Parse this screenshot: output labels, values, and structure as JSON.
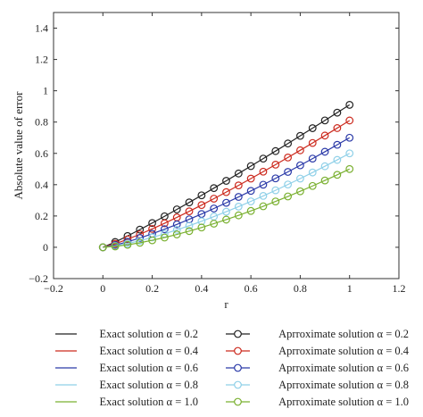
{
  "chart_data": {
    "type": "line",
    "xlabel": "r",
    "ylabel": "Absolute value of error",
    "xlim": [
      -0.2,
      1.2
    ],
    "ylim": [
      -0.2,
      1.5
    ],
    "xticks": [
      "−0.2",
      "0",
      "0.2",
      "0.4",
      "0.6",
      "0.8",
      "1",
      "1.2"
    ],
    "yticks": [
      "−0.2",
      "0",
      "0.2",
      "0.4",
      "0.6",
      "0.8",
      "1",
      "1.2",
      "1.4"
    ],
    "xtick_values": [
      -0.2,
      0,
      0.2,
      0.4,
      0.6,
      0.8,
      1.0,
      1.2
    ],
    "ytick_values": [
      -0.2,
      0,
      0.2,
      0.4,
      0.6,
      0.8,
      1.0,
      1.2,
      1.4
    ],
    "grid": false,
    "legend_position": "bottom",
    "x": [
      0,
      0.05,
      0.1,
      0.15,
      0.2,
      0.25,
      0.3,
      0.35,
      0.4,
      0.45,
      0.5,
      0.55,
      0.6,
      0.65,
      0.7,
      0.75,
      0.8,
      0.85,
      0.9,
      0.95,
      1.0
    ],
    "series": [
      {
        "alpha": 0.2,
        "end_value": 0.91,
        "exponent": 1.1,
        "color": "#222222",
        "exact_label": "Exact solution α = 0.2",
        "approx_label": "Aprroximate solution α = 0.2"
      },
      {
        "alpha": 0.4,
        "end_value": 0.81,
        "exponent": 1.2,
        "color": "#cc2a1e",
        "exact_label": "Exact solution α = 0.4",
        "approx_label": "Aprroximate solution α = 0.4"
      },
      {
        "alpha": 0.6,
        "end_value": 0.7,
        "exponent": 1.3,
        "color": "#2b3aa8",
        "exact_label": "Exact solution α = 0.6",
        "approx_label": "Aprroximate solution α = 0.6"
      },
      {
        "alpha": 0.8,
        "end_value": 0.6,
        "exponent": 1.4,
        "color": "#8fd0e8",
        "exact_label": "Exact solution α = 0.8",
        "approx_label": "Aprroximate solution α = 0.8"
      },
      {
        "alpha": 1.0,
        "end_value": 0.5,
        "exponent": 1.5,
        "color": "#7ab030",
        "exact_label": "Exact solution α = 1.0",
        "approx_label": "Aprroximate solution α = 1.0"
      }
    ]
  }
}
